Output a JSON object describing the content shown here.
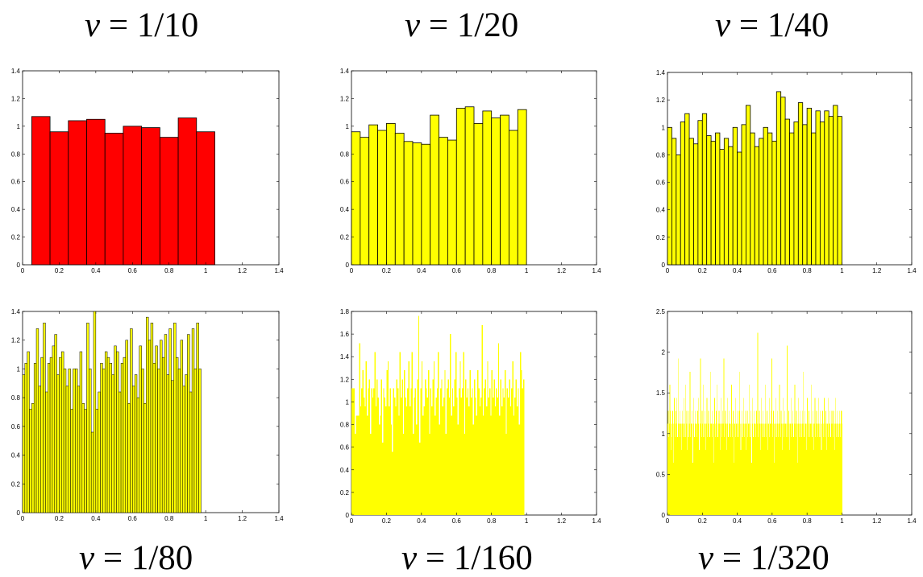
{
  "panel_labels": [
    {
      "var": "v",
      "eq": " = 1/10"
    },
    {
      "var": "v",
      "eq": " = 1/20"
    },
    {
      "var": "v",
      "eq": " = 1/40"
    },
    {
      "var": "v",
      "eq": " = 1/80"
    },
    {
      "var": "v",
      "eq": " = 1/160"
    },
    {
      "var": "v",
      "eq": " = 1/320"
    }
  ],
  "colors": {
    "red_fill": "#ff0000",
    "yellow_fill": "#ffff00",
    "edge": "#000000"
  },
  "chart_data": [
    {
      "type": "bar",
      "bin_width": 0.1,
      "x_start": 0.05,
      "xlim": [
        0,
        1.4
      ],
      "ylim": [
        0,
        1.4
      ],
      "x_ticks": [
        "0",
        "0.2",
        "0.4",
        "0.6",
        "0.8",
        "1",
        "1.2",
        "1.4"
      ],
      "y_ticks": [
        "0",
        "0.2",
        "0.4",
        "0.6",
        "0.8",
        "1",
        "1.2",
        "1.4"
      ],
      "fill": "red",
      "values": [
        1.07,
        0.96,
        1.04,
        1.05,
        0.95,
        1.0,
        0.99,
        0.92,
        1.06,
        0.96
      ]
    },
    {
      "type": "bar",
      "bin_width": 0.05,
      "x_start": 0.0,
      "xlim": [
        0,
        1.4
      ],
      "ylim": [
        0,
        1.4
      ],
      "x_ticks": [
        "0",
        "0.2",
        "0.4",
        "0.6",
        "0.8",
        "1",
        "1.2",
        "1.4"
      ],
      "y_ticks": [
        "0",
        "0.2",
        "0.4",
        "0.6",
        "0.8",
        "1",
        "1.2",
        "1.4"
      ],
      "fill": "yellow",
      "values": [
        0.96,
        0.92,
        1.01,
        0.97,
        1.02,
        0.95,
        0.89,
        0.88,
        0.87,
        1.08,
        0.92,
        0.9,
        1.13,
        1.14,
        1.02,
        1.11,
        1.06,
        1.08,
        0.97,
        1.12
      ]
    },
    {
      "type": "bar",
      "bin_width": 0.025,
      "x_start": 0.0,
      "xlim": [
        0,
        1.4
      ],
      "ylim": [
        0,
        1.4
      ],
      "x_ticks": [
        "0",
        "0.2",
        "0.4",
        "0.6",
        "0.8",
        "1",
        "1.2",
        "1.4"
      ],
      "y_ticks": [
        "0",
        "0.2",
        "0.4",
        "0.6",
        "0.8",
        "1",
        "1.2",
        "1.4"
      ],
      "fill": "yellow",
      "values": [
        1.0,
        0.92,
        0.8,
        1.04,
        1.1,
        0.92,
        0.88,
        1.05,
        1.1,
        0.94,
        0.9,
        0.96,
        0.84,
        0.92,
        0.86,
        1.0,
        0.82,
        1.02,
        1.16,
        0.96,
        0.86,
        0.92,
        1.0,
        0.96,
        0.9,
        1.26,
        1.22,
        1.06,
        0.96,
        1.04,
        1.18,
        1.02,
        1.14,
        0.96,
        1.12,
        1.04,
        1.12,
        1.08,
        1.16,
        1.08
      ]
    },
    {
      "type": "bar",
      "bin_width": 0.0125,
      "x_start": 0.0,
      "xlim": [
        0,
        1.4
      ],
      "ylim": [
        0,
        1.4
      ],
      "x_ticks": [
        "0",
        "0.2",
        "0.4",
        "0.6",
        "0.8",
        "1",
        "1.2",
        "1.4"
      ],
      "y_ticks": [
        "0",
        "0.2",
        "0.4",
        "0.6",
        "0.8",
        "1",
        "1.2",
        "1.4"
      ],
      "fill": "yellow",
      "values": [
        0.96,
        1.04,
        1.12,
        0.72,
        0.76,
        1.04,
        1.28,
        0.88,
        1.08,
        1.32,
        0.84,
        1.04,
        1.08,
        1.16,
        1.24,
        0.96,
        1.08,
        1.12,
        1.0,
        0.88,
        1.0,
        0.72,
        1.0,
        1.0,
        0.88,
        1.12,
        0.76,
        0.72,
        1.32,
        1.0,
        0.56,
        1.4,
        0.72,
        0.84,
        1.04,
        1.0,
        1.12,
        1.08,
        1.04,
        0.96,
        1.16,
        1.12,
        0.84,
        1.04,
        1.08,
        1.2,
        0.76,
        1.28,
        0.88,
        0.96,
        0.8,
        1.16,
        1.0,
        0.76,
        1.36,
        1.2,
        1.32,
        1.04,
        1.16,
        1.0,
        1.2,
        1.08,
        1.24,
        0.96,
        1.28,
        0.92,
        1.32,
        1.08,
        1.0,
        1.2,
        0.88,
        0.96,
        1.24,
        0.84,
        1.28,
        1.0,
        1.32,
        1.0
      ]
    },
    {
      "type": "bar",
      "bin_width": 0.00625,
      "x_start": 0.0,
      "xlim": [
        0,
        1.4
      ],
      "ylim": [
        0,
        1.8
      ],
      "x_ticks": [
        "0",
        "0.2",
        "0.4",
        "0.6",
        "0.8",
        "1",
        "1.2",
        "1.4"
      ],
      "y_ticks": [
        "0",
        "0.2",
        "0.4",
        "0.6",
        "0.8",
        "1",
        "1.2",
        "1.4",
        "1.6",
        "1.8"
      ],
      "fill": "yellow",
      "values": [
        1.12,
        1.12,
        1.12,
        0.72,
        0.88,
        0.88,
        0.88,
        1.52,
        0.96,
        1.12,
        1.28,
        1.04,
        0.96,
        1.36,
        0.88,
        1.12,
        1.2,
        0.72,
        1.12,
        1.04,
        1.12,
        1.44,
        0.96,
        1.2,
        1.04,
        0.8,
        0.88,
        1.2,
        0.64,
        1.12,
        1.04,
        0.96,
        1.28,
        1.36,
        0.96,
        1.12,
        0.8,
        0.56,
        1.12,
        1.04,
        0.96,
        1.2,
        1.12,
        0.88,
        1.44,
        1.04,
        1.2,
        0.72,
        1.28,
        1.04,
        0.96,
        1.12,
        1.36,
        0.96,
        1.12,
        1.44,
        0.72,
        1.04,
        1.12,
        0.8,
        1.2,
        1.76,
        0.64,
        1.12,
        1.36,
        0.88,
        0.96,
        1.2,
        1.12,
        1.04,
        1.28,
        0.72,
        1.12,
        0.96,
        1.2,
        1.36,
        0.88,
        1.04,
        1.12,
        1.44,
        0.8,
        1.12,
        1.2,
        0.96,
        1.04,
        1.28,
        0.72,
        1.12,
        1.2,
        1.04,
        1.6,
        0.88,
        1.12,
        0.96,
        1.2,
        1.44,
        1.04,
        0.8,
        1.12,
        1.36,
        1.04,
        1.12,
        1.44,
        0.72,
        1.2,
        1.04,
        1.12,
        0.96,
        1.28,
        1.04,
        1.12,
        0.8,
        1.2,
        1.04,
        0.88,
        1.28,
        1.12,
        0.96,
        1.04,
        1.68,
        0.88,
        1.12,
        1.2,
        0.96,
        1.36,
        1.04,
        1.12,
        0.88,
        1.28,
        1.04,
        1.2,
        0.96,
        1.12,
        1.04,
        1.52,
        0.88,
        1.2,
        0.96,
        1.12,
        1.04,
        1.28,
        0.72,
        1.12,
        1.04,
        1.2,
        0.96,
        1.12,
        1.36,
        0.88,
        1.04,
        1.2,
        0.96,
        1.12,
        0.8,
        1.44,
        1.28,
        1.12,
        1.2
      ]
    },
    {
      "type": "bar",
      "bin_width": 0.003125,
      "x_start": 0.0,
      "xlim": [
        0,
        1.4
      ],
      "ylim": [
        0,
        2.5
      ],
      "x_ticks": [
        "0",
        "0.2",
        "0.4",
        "0.6",
        "0.8",
        "1",
        "1.2",
        "1.4"
      ],
      "y_ticks": [
        "0",
        "0.5",
        "1",
        "1.5",
        "2",
        "2.5"
      ],
      "fill": "yellow",
      "values": [
        1.12,
        1.28,
        0.96,
        1.12,
        1.6,
        1.28,
        0.8,
        1.12,
        0.96,
        1.28,
        1.12,
        0.64,
        1.44,
        1.12,
        0.96,
        1.28,
        1.12,
        1.44,
        0.96,
        1.12,
        1.92,
        1.12,
        0.96,
        1.28,
        1.12,
        0.8,
        1.12,
        1.28,
        0.96,
        1.12,
        1.44,
        1.12,
        0.96,
        1.6,
        1.12,
        1.28,
        0.8,
        1.12,
        0.96,
        1.28,
        1.12,
        1.76,
        0.96,
        1.12,
        1.28,
        1.12,
        0.64,
        1.12,
        1.44,
        0.96,
        1.12,
        1.28,
        1.12,
        0.96,
        1.12,
        1.28,
        1.44,
        1.12,
        0.8,
        1.12,
        1.92,
        1.12,
        0.96,
        1.28,
        1.12,
        1.6,
        0.96,
        1.12,
        1.28,
        1.12,
        0.8,
        1.12,
        1.44,
        0.96,
        1.12,
        1.28,
        1.12,
        0.96,
        1.12,
        1.76,
        1.12,
        0.96,
        1.28,
        1.12,
        0.64,
        1.12,
        1.44,
        0.96,
        1.12,
        1.28,
        1.12,
        1.6,
        0.96,
        1.12,
        1.28,
        1.12,
        0.8,
        1.12,
        1.44,
        0.96,
        1.12,
        1.28,
        1.12,
        1.92,
        0.96,
        1.12,
        1.28,
        1.12,
        0.8,
        1.12,
        1.44,
        0.96,
        1.12,
        1.28,
        1.12,
        0.96,
        1.12,
        1.6,
        1.12,
        0.96,
        1.28,
        1.12,
        0.64,
        1.12,
        1.44,
        0.96,
        1.12,
        1.28,
        1.12,
        0.96,
        1.12,
        1.28,
        1.76,
        1.12,
        0.8,
        1.12,
        1.28,
        0.96,
        1.12,
        1.44,
        1.12,
        0.96,
        1.28,
        1.12,
        0.8,
        1.12,
        1.28,
        0.96,
        1.12,
        1.6,
        1.12,
        0.96,
        1.28,
        1.12,
        0.64,
        1.12,
        1.44,
        0.96,
        1.12,
        1.28,
        1.12,
        0.96,
        1.12,
        1.28,
        1.12,
        2.24,
        0.96,
        1.12,
        1.28,
        1.12,
        0.8,
        1.12,
        1.44,
        0.96,
        1.12,
        1.28,
        1.12,
        0.96,
        1.12,
        1.6,
        1.12,
        0.96,
        1.28,
        1.12,
        0.8,
        1.12,
        1.44,
        0.96,
        1.12,
        1.28,
        1.12,
        1.92,
        0.96,
        1.12,
        1.28,
        1.12,
        0.64,
        1.12,
        1.44,
        0.96,
        1.12,
        1.28,
        1.12,
        0.96,
        1.12,
        1.6,
        1.12,
        0.96,
        1.28,
        1.12,
        0.8,
        1.12,
        1.44,
        0.96,
        1.12,
        1.28,
        1.12,
        0.96,
        1.12,
        2.08,
        1.12,
        0.96,
        1.28,
        1.12,
        0.8,
        1.12,
        1.44,
        0.96,
        1.12,
        1.28,
        1.12,
        0.96,
        1.12,
        1.6,
        1.12,
        0.96,
        1.28,
        1.12,
        0.64,
        1.12,
        1.44,
        0.96,
        1.12,
        1.28,
        1.12,
        0.96,
        1.12,
        1.28,
        1.12,
        1.76,
        0.96,
        1.12,
        1.28,
        1.12,
        0.8,
        1.12,
        1.44,
        0.96,
        1.12,
        1.28,
        1.12,
        0.96,
        1.12,
        1.6,
        1.12,
        0.96,
        1.28,
        1.12,
        0.8,
        1.12,
        1.44,
        0.96,
        1.12,
        1.28,
        1.12,
        0.96,
        1.12,
        1.44,
        1.12,
        0.96,
        1.28,
        1.12,
        0.8,
        1.12,
        1.28,
        0.96,
        1.12,
        1.44,
        1.12,
        0.96,
        1.28,
        1.12,
        0.8,
        1.12,
        1.44,
        0.96,
        1.12,
        1.28,
        1.12,
        0.96,
        1.12,
        1.28,
        1.12,
        0.96,
        1.28,
        1.12,
        0.8,
        1.12,
        1.44,
        0.96,
        1.12,
        1.28,
        1.12,
        0.96,
        1.12,
        1.28,
        1.12,
        0.96,
        1.28,
        1.12,
        1.28
      ]
    }
  ]
}
